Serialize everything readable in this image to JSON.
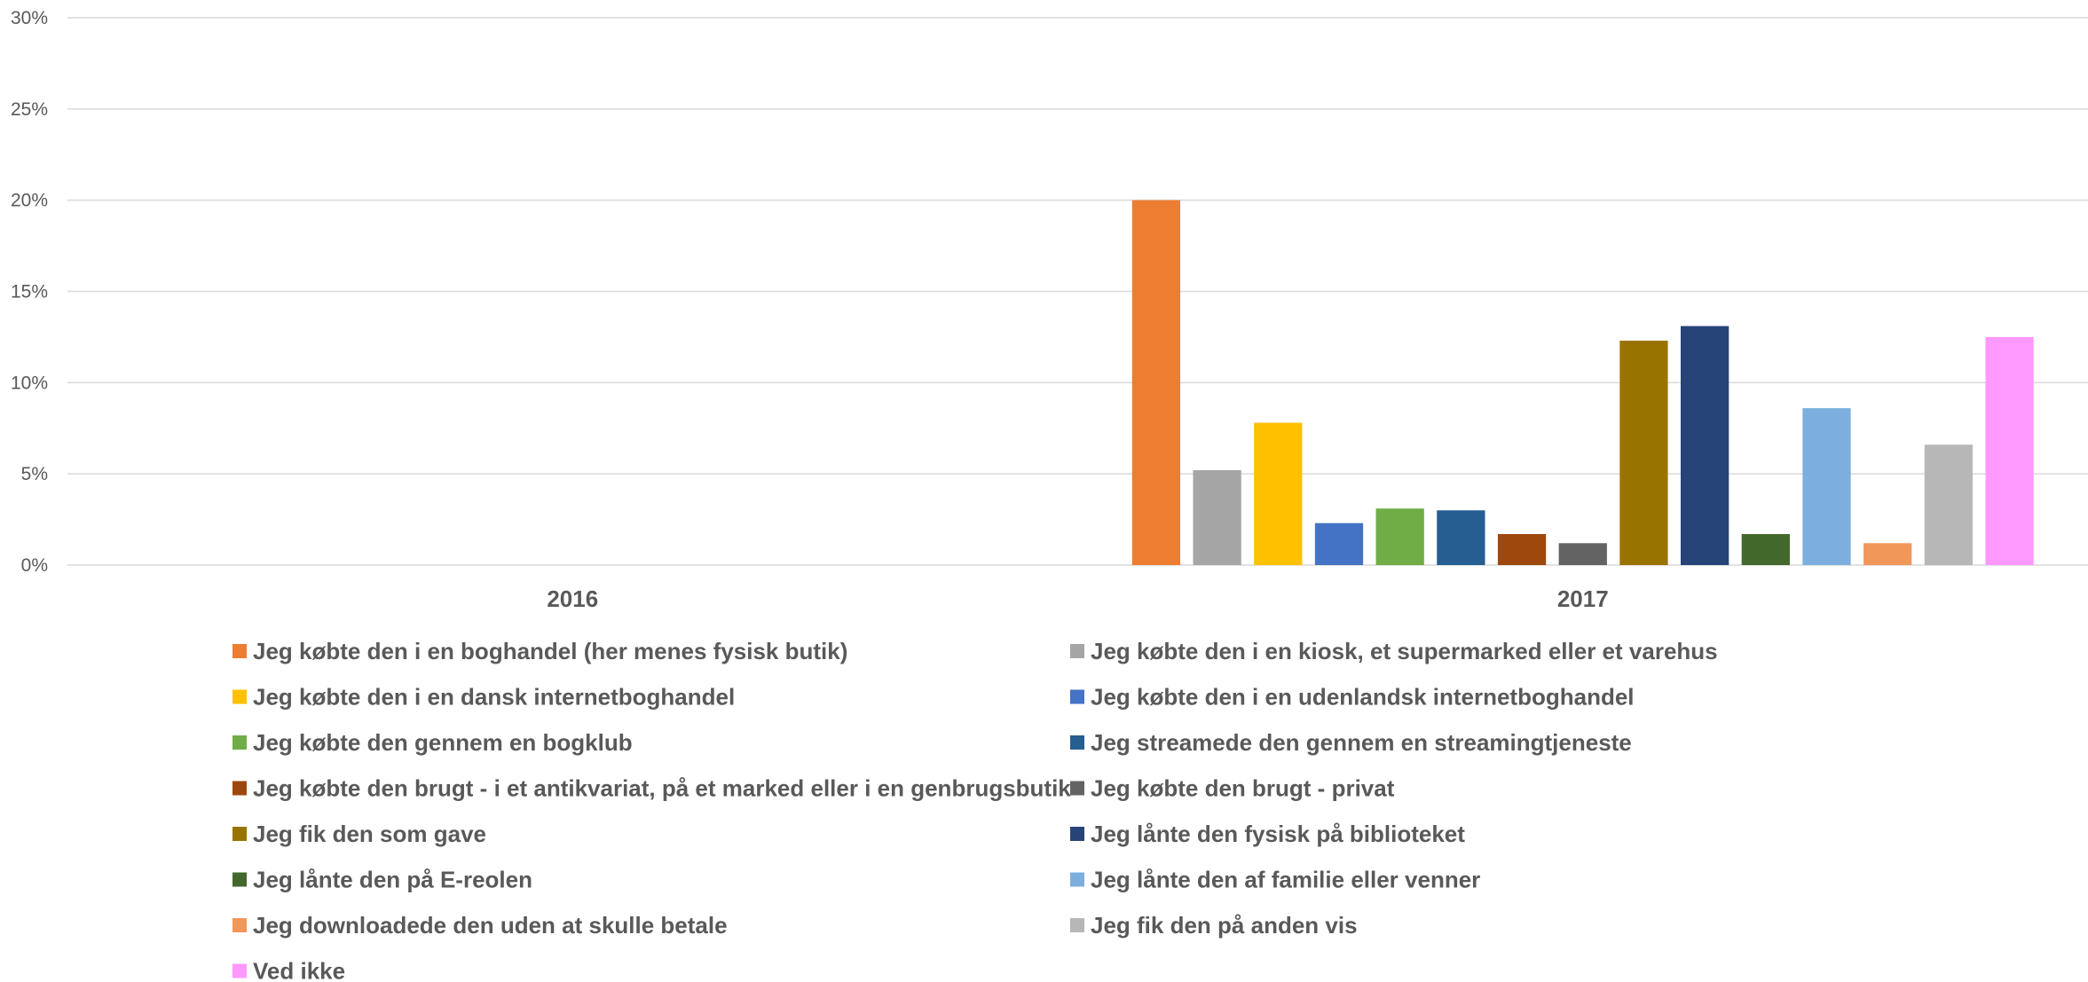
{
  "chart_data": {
    "type": "bar",
    "categories": [
      "2016",
      "2017"
    ],
    "ylim": [
      0,
      0.3
    ],
    "yticks": [
      {
        "value": 0,
        "label": "0%"
      },
      {
        "value": 0.05,
        "label": "5%"
      },
      {
        "value": 0.1,
        "label": "10%"
      },
      {
        "value": 0.15,
        "label": "15%"
      },
      {
        "value": 0.2,
        "label": "20%"
      },
      {
        "value": 0.25,
        "label": "25%"
      },
      {
        "value": 0.3,
        "label": "30%"
      }
    ],
    "grid": true,
    "legend_position": "bottom",
    "series": [
      {
        "name": "Jeg købte den i en boghandel (her menes fysisk butik)",
        "color": "#ED7D31",
        "values": [
          null,
          0.2
        ]
      },
      {
        "name": "Jeg købte den i en kiosk, et supermarked eller et varehus",
        "color": "#A5A5A5",
        "values": [
          null,
          0.052
        ]
      },
      {
        "name": "Jeg købte den i en dansk internetboghandel",
        "color": "#FFC000",
        "values": [
          null,
          0.078
        ]
      },
      {
        "name": "Jeg købte den i en udenlandsk internetboghandel",
        "color": "#4472C4",
        "values": [
          null,
          0.023
        ]
      },
      {
        "name": "Jeg købte den gennem en bogklub",
        "color": "#70AD47",
        "values": [
          null,
          0.031
        ]
      },
      {
        "name": "Jeg streamede den gennem en streamingtjeneste",
        "color": "#255E91",
        "values": [
          null,
          0.03
        ]
      },
      {
        "name": "Jeg købte den brugt - i et antikvariat, på et marked eller i en genbrugsbutik",
        "color": "#9E480E",
        "values": [
          null,
          0.017
        ]
      },
      {
        "name": "Jeg købte den brugt - privat",
        "color": "#636363",
        "values": [
          null,
          0.012
        ]
      },
      {
        "name": "Jeg fik den som gave",
        "color": "#997300",
        "values": [
          null,
          0.123
        ]
      },
      {
        "name": "Jeg lånte den fysisk på biblioteket",
        "color": "#264478",
        "values": [
          null,
          0.131
        ]
      },
      {
        "name": "Jeg lånte den på E-reolen",
        "color": "#43682B",
        "values": [
          null,
          0.017
        ]
      },
      {
        "name": "Jeg lånte den af familie eller venner",
        "color": "#7CAFDD",
        "values": [
          null,
          0.086
        ]
      },
      {
        "name": "Jeg downloadede den uden at skulle betale",
        "color": "#F1975A",
        "values": [
          null,
          0.012
        ]
      },
      {
        "name": "Jeg fik den på anden vis",
        "color": "#B7B7B7",
        "values": [
          null,
          0.066
        ]
      },
      {
        "name": "Ved ikke",
        "color": "#FF99FF",
        "values": [
          null,
          0.125
        ]
      }
    ]
  }
}
